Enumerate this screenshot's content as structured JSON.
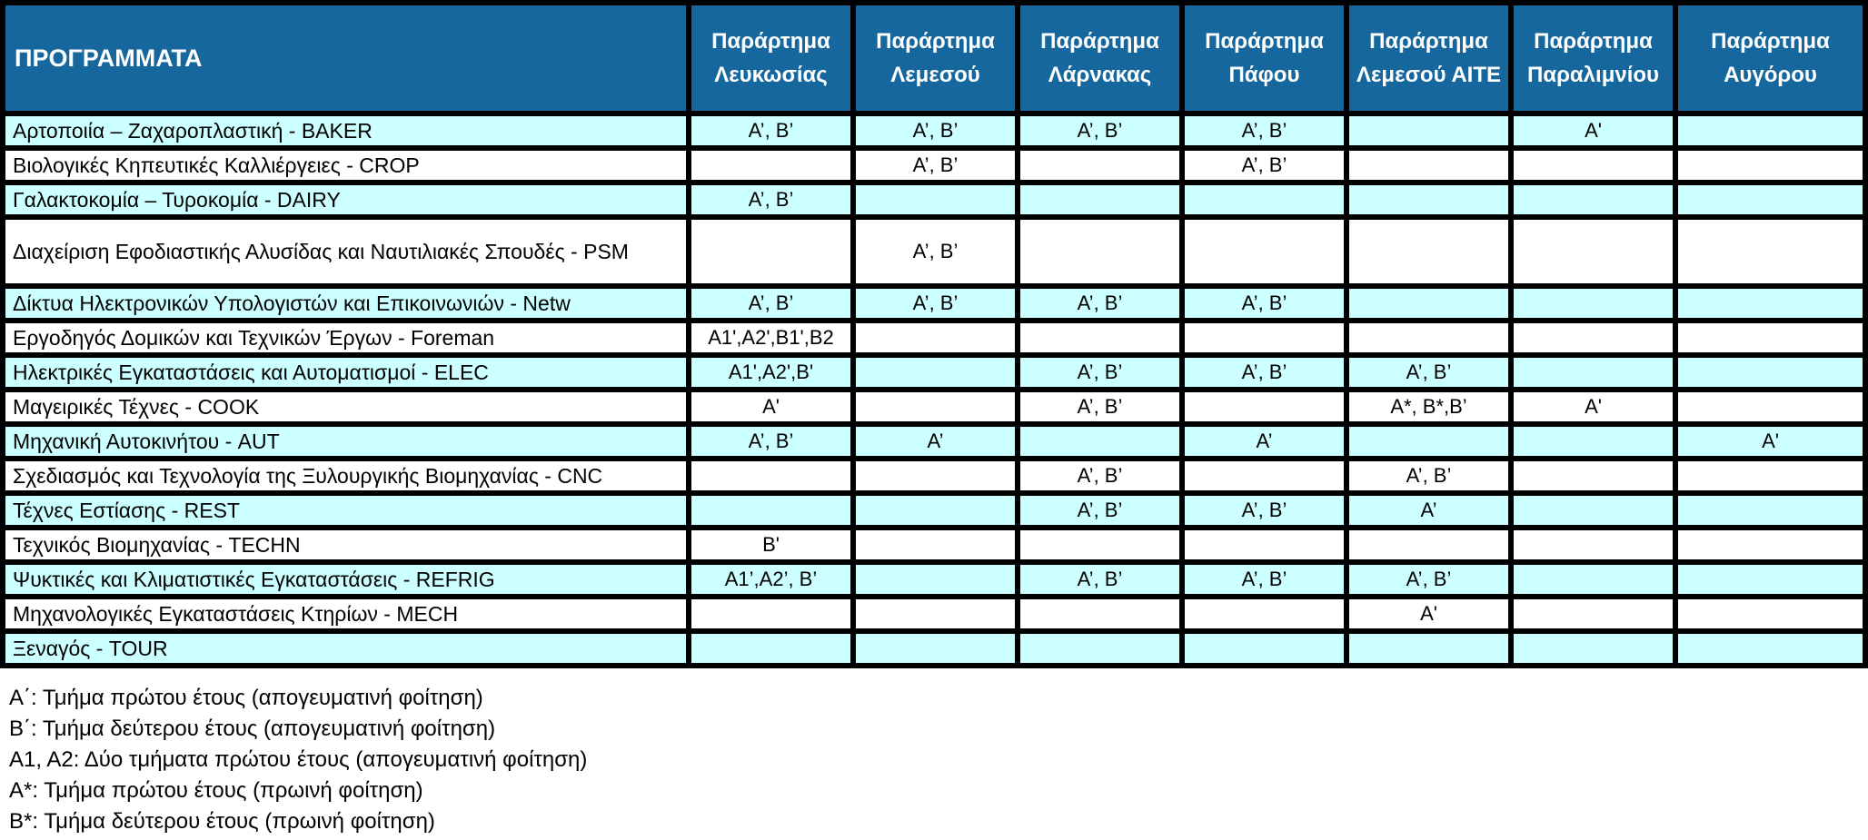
{
  "title": "ΠΡΟΓΡΑΜΜΑΤΑ",
  "columns": [
    "Παράρτημα Λευκωσίας",
    "Παράρτημα Λεμεσού",
    "Παράρτημα Λάρνακας",
    "Παράρτημα Πάφου",
    "Παράρτημα Λεμεσού ΑΙΤΕ",
    "Παράρτημα Παραλιμνίου",
    "Παράρτημα Αυγόρου"
  ],
  "rows": [
    {
      "program": "Αρτοποιία – Ζαχαροπλαστική - BAKER",
      "cells": [
        "Α’, Β’",
        "Α’, Β’",
        "Α’, Β’",
        "Α’, Β’",
        "",
        "Α'",
        ""
      ]
    },
    {
      "program": "Βιολογικές Κηπευτικές Καλλιέργειες - CROP",
      "cells": [
        "",
        "Α’, Β’",
        "",
        "Α’, Β’",
        "",
        "",
        ""
      ]
    },
    {
      "program": "Γαλακτοκομία – Τυροκομία - DAIRY",
      "cells": [
        "Α’, Β’",
        "",
        "",
        "",
        "",
        "",
        ""
      ]
    },
    {
      "program": "Διαχείριση Εφοδιαστικής Αλυσίδας και Ναυτιλιακές Σπουδές - PSM",
      "cells": [
        "",
        "Α’, Β’",
        "",
        "",
        "",
        "",
        ""
      ]
    },
    {
      "program": "Δίκτυα Ηλεκτρονικών Υπολογιστών και Επικοινωνιών - Netw",
      "cells": [
        "Α’, Β’",
        "Α’, Β’",
        "Α’, Β’",
        "Α’, Β’",
        "",
        "",
        ""
      ]
    },
    {
      "program": "Εργοδηγός Δομικών και Τεχνικών Έργων - Foreman",
      "cells": [
        "A1',A2',B1',B2",
        "",
        "",
        "",
        "",
        "",
        ""
      ]
    },
    {
      "program": "Ηλεκτρικές Εγκαταστάσεις και Αυτοματισμοί - ELEC",
      "cells": [
        "A1',A2',B'",
        "",
        "Α’, Β’",
        "Α’, Β’",
        "Α’, Β’",
        "",
        ""
      ]
    },
    {
      "program": "Μαγειρικές Τέχνες - COOK",
      "cells": [
        "Α'",
        "",
        "Α’, Β’",
        "",
        "Α*, Β*,Β’",
        "Α'",
        ""
      ]
    },
    {
      "program": "Μηχανική Αυτοκινήτου - AUT",
      "cells": [
        "Α’, Β’",
        "Α’",
        "",
        "Α’",
        "",
        "",
        "Α'"
      ]
    },
    {
      "program": "Σχεδιασμός και Τεχνολογία της Ξυλουργικής Βιομηχανίας - CNC",
      "cells": [
        "",
        "",
        "Α’, Β’",
        "",
        "Α’, Β’",
        "",
        ""
      ]
    },
    {
      "program": "Τέχνες Εστίασης - REST",
      "cells": [
        "",
        "",
        "Α’, Β’",
        "Α’, Β’",
        "Α’",
        "",
        ""
      ]
    },
    {
      "program": "Τεχνικός Βιομηχανίας - TECHN",
      "cells": [
        "B'",
        "",
        "",
        "",
        "",
        "",
        ""
      ]
    },
    {
      "program": "Ψυκτικές και Κλιματιστικές Εγκαταστάσεις - REFRIG",
      "cells": [
        "A1’,A2’, Β’",
        "",
        "Α’, Β’",
        "Α’, Β’",
        "Α’, Β’",
        "",
        ""
      ]
    },
    {
      "program": "Μηχανολογικές Εγκαταστάσεις Κτηρίων - MECH",
      "cells": [
        "",
        "",
        "",
        "",
        "Α'",
        "",
        ""
      ]
    },
    {
      "program": "Ξεναγός - TOUR",
      "cells": [
        "",
        "",
        "",
        "",
        "",
        "",
        ""
      ]
    }
  ],
  "legend": [
    "Α΄: Τμήμα πρώτου έτους (απογευματινή φοίτηση)",
    "Β΄: Τμήμα δεύτερου έτους (απογευματινή φοίτηση)",
    "Α1, Α2: Δύο τμήματα πρώτου έτους (απογευματινή φοίτηση)",
    "Α*: Τμήμα πρώτου έτους (πρωινή φοίτηση)",
    "Β*: Τμήμα δεύτερου έτους (πρωινή φοίτηση)"
  ],
  "colors": {
    "header_bg": "#16679E",
    "header_text": "#FFFFFF",
    "row_alt_bg": "#CCFFFF",
    "row_bg": "#FFFFFF",
    "grid": "#000000",
    "body_text": "#000000"
  }
}
